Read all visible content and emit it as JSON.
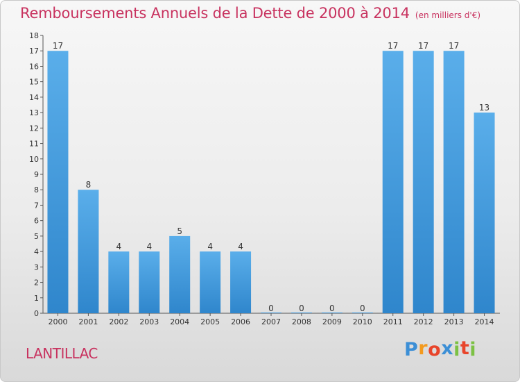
{
  "chart_data": {
    "type": "bar",
    "title": "Remboursements Annuels de la Dette de 2000 à 2014",
    "subtitle": "(en milliers d'€)",
    "categories": [
      "2000",
      "2001",
      "2002",
      "2003",
      "2004",
      "2005",
      "2006",
      "2007",
      "2008",
      "2009",
      "2010",
      "2011",
      "2012",
      "2013",
      "2014"
    ],
    "values": [
      17,
      8,
      4,
      4,
      5,
      4,
      4,
      0,
      0,
      0,
      0,
      17,
      17,
      17,
      13
    ],
    "ylim": [
      0,
      18
    ],
    "yticks": [
      0,
      1,
      2,
      3,
      4,
      5,
      6,
      7,
      8,
      9,
      10,
      11,
      12,
      13,
      14,
      15,
      16,
      17,
      18
    ],
    "xlabel": "",
    "ylabel": "",
    "grid": false,
    "bar_color": "#3a93d8"
  },
  "footer": {
    "place": "LANTILLAC",
    "logo_letters": [
      "P",
      "r",
      "o",
      "x",
      "i",
      "t",
      "i"
    ],
    "logo_colors": [
      "#3c8fd6",
      "#f39a1e",
      "#e8452b",
      "#3c8fd6",
      "#7cc144",
      "#e8452b",
      "#7cc144"
    ]
  }
}
